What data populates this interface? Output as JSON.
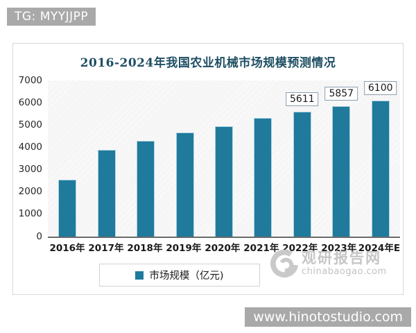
{
  "overlays": {
    "tg_badge": "TG: MYYJJPP",
    "site_badge": "www.hinotostudio.com"
  },
  "watermark": {
    "name": "观研报告网",
    "url": "chinabaogao.com"
  },
  "chart_data": {
    "type": "bar",
    "title": "2016-2024年我国农业机械市场规模预测情况",
    "categories": [
      "2016年",
      "2017年",
      "2018年",
      "2019年",
      "2020年",
      "2021年",
      "2022年",
      "2023年",
      "2024年E"
    ],
    "values": [
      2540,
      3890,
      4290,
      4680,
      4960,
      5310,
      5611,
      5857,
      6100
    ],
    "data_labels": [
      null,
      null,
      null,
      null,
      null,
      null,
      "5611",
      "5857",
      "6100"
    ],
    "xlabel": "",
    "ylabel": "",
    "ylim": [
      0,
      7000
    ],
    "yticks": [
      0,
      1000,
      2000,
      3000,
      4000,
      5000,
      6000,
      7000
    ],
    "grid": false,
    "legend_position": "bottom",
    "legend": [
      {
        "label": "市场规模（亿元)",
        "color": "#1F7A9C"
      }
    ],
    "bar_color": "#1F7A9C",
    "bar_edge_color": "#AED3E3",
    "title_color": "#1F4E63"
  }
}
